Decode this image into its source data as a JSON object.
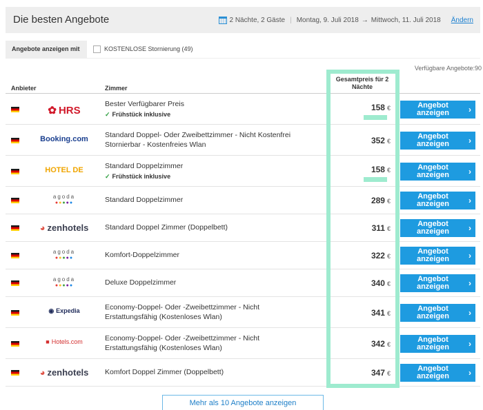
{
  "header": {
    "title": "Die besten Angebote",
    "guests": "2 Nächte, 2 Gäste",
    "checkin": "Montag, 9. Juli 2018",
    "arrow": "→",
    "checkout": "Mittwoch, 11. Juli 2018",
    "change_link": "Ändern"
  },
  "filter": {
    "label": "Angebote anzeigen mit",
    "option": "KOSTENLOSE Stornierung (49)"
  },
  "available": "Verfügbare Angebote:90",
  "columns": {
    "provider": "Anbieter",
    "room": "Zimmer",
    "price_line1": "Gesamtpreis für 2",
    "price_line2": "Nächte"
  },
  "currency": "€",
  "button": {
    "line1": "Angebot",
    "line2": "anzeigen"
  },
  "rows": [
    {
      "provider": "HRS",
      "room1": "Bester Verfügbarer Preis",
      "room2": "",
      "perk": "Frühstück inklusive",
      "price": "158"
    },
    {
      "provider": "Booking.com",
      "room1": "Standard Doppel- Oder Zweibettzimmer - Nicht Kostenfrei",
      "room2": "Stornierbar - Kostenfreies Wlan",
      "perk": "",
      "price": "352"
    },
    {
      "provider": "HOTEL DE",
      "room1": "Standard Doppelzimmer",
      "room2": "",
      "perk": "Frühstück inklusive",
      "price": "158"
    },
    {
      "provider": "agoda",
      "room1": "Standard Doppelzimmer",
      "room2": "",
      "perk": "",
      "price": "289"
    },
    {
      "provider": "zenhotels",
      "room1": "Standard Doppel Zimmer (Doppelbett)",
      "room2": "",
      "perk": "",
      "price": "311"
    },
    {
      "provider": "agoda",
      "room1": "Komfort-Doppelzimmer",
      "room2": "",
      "perk": "",
      "price": "322"
    },
    {
      "provider": "agoda",
      "room1": "Deluxe Doppelzimmer",
      "room2": "",
      "perk": "",
      "price": "340"
    },
    {
      "provider": "Expedia",
      "room1": "Economy-Doppel- Oder -Zweibettzimmer - Nicht",
      "room2": "Erstattungsfähig (Kostenloses Wlan)",
      "perk": "",
      "price": "341"
    },
    {
      "provider": "Hotels.com",
      "room1": "Economy-Doppel- Oder -Zweibettzimmer - Nicht",
      "room2": "Erstattungsfähig (Kostenloses Wlan)",
      "perk": "",
      "price": "342"
    },
    {
      "provider": "zenhotels",
      "room1": "Komfort Doppel Zimmer (Doppelbett)",
      "room2": "",
      "perk": "",
      "price": "347"
    }
  ],
  "more_button": "Mehr als 10 Angebote anzeigen",
  "colors": {
    "accent": "#1e9be0",
    "highlight": "#9eebcf",
    "hrs": "#d1192a",
    "booking": "#1a3f8f",
    "hotelde": "#f0a500"
  }
}
